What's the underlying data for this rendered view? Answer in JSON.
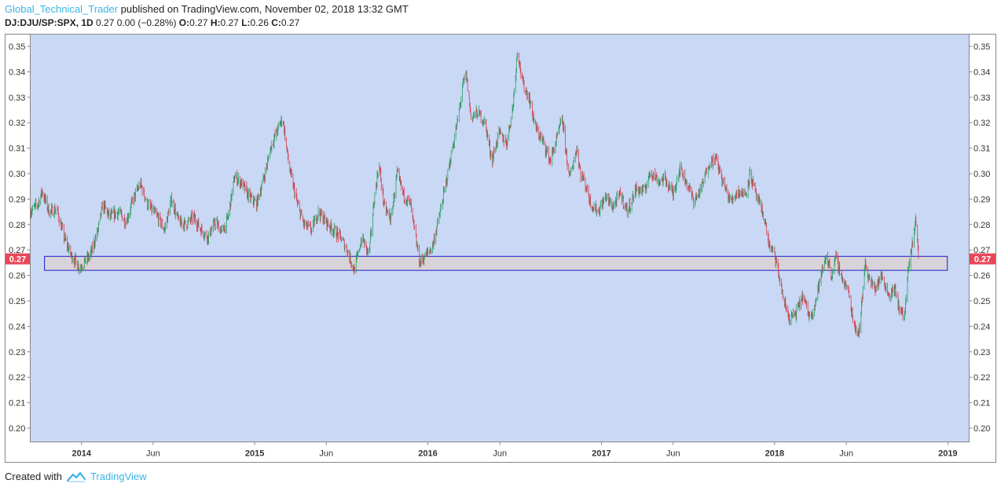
{
  "header": {
    "author": "Global_Technical_Trader",
    "published_text": " published on TradingView.com, November 02, 2018 13:32 GMT",
    "symbol": "DJ:DJU/SP:SPX, 1D",
    "quote": " 0.27 0.00 (−0.28%) ",
    "o_label": "O:",
    "o_value": "0.27 ",
    "h_label": "H:",
    "h_value": "0.27 ",
    "l_label": "L:",
    "l_value": "0.26 ",
    "c_label": "C:",
    "c_value": "0.27"
  },
  "footer": {
    "created_with": "Created with",
    "brand": "TradingView",
    "logo_icon": "tradingview-logo-icon"
  },
  "colors": {
    "plot_background": "#c9d8f5",
    "up": "#2e9e63",
    "down": "#d2404e",
    "zone_fill": "#d8d3d8",
    "zone_border": "#1d1dc8",
    "price_label_bg": "#e8475a"
  },
  "chart_data": {
    "type": "candlestick",
    "title": "",
    "xlabel": "",
    "ylabel": "",
    "ylim": [
      0.195,
      0.355
    ],
    "yticks": [
      "0.35",
      "0.34",
      "0.33",
      "0.32",
      "0.31",
      "0.30",
      "0.29",
      "0.28",
      "0.27",
      "0.26",
      "0.25",
      "0.24",
      "0.23",
      "0.22",
      "0.21",
      "0.20"
    ],
    "xticks": [
      {
        "label": "2014",
        "bold": true,
        "date": "2014-01-01"
      },
      {
        "label": "Jun",
        "bold": false,
        "date": "2014-06-01"
      },
      {
        "label": "2015",
        "bold": true,
        "date": "2015-01-01"
      },
      {
        "label": "Jun",
        "bold": false,
        "date": "2015-06-01"
      },
      {
        "label": "2016",
        "bold": true,
        "date": "2016-01-01"
      },
      {
        "label": "Jun",
        "bold": false,
        "date": "2016-06-01"
      },
      {
        "label": "2017",
        "bold": true,
        "date": "2017-01-01"
      },
      {
        "label": "Jun",
        "bold": false,
        "date": "2017-06-01"
      },
      {
        "label": "2018",
        "bold": true,
        "date": "2018-01-01"
      },
      {
        "label": "Jun",
        "bold": false,
        "date": "2018-06-01"
      },
      {
        "label": "2019",
        "bold": true,
        "date": "2019-01-01"
      }
    ],
    "xlim": [
      "2013-09-15",
      "2019-02-15"
    ],
    "last_price": "0.27",
    "last_price_value": 0.2665,
    "support_zone": {
      "low": 0.262,
      "high": 0.2675,
      "start": "2013-10-15",
      "end": "2018-12-31"
    },
    "series_path": [
      [
        "2013-09-15",
        0.285
      ],
      [
        "2013-10-01",
        0.288
      ],
      [
        "2013-10-10",
        0.293
      ],
      [
        "2013-10-25",
        0.285
      ],
      [
        "2013-11-10",
        0.286
      ],
      [
        "2013-11-25",
        0.275
      ],
      [
        "2013-12-10",
        0.268
      ],
      [
        "2013-12-28",
        0.263
      ],
      [
        "2014-01-20",
        0.268
      ],
      [
        "2014-02-05",
        0.278
      ],
      [
        "2014-02-15",
        0.288
      ],
      [
        "2014-03-01",
        0.283
      ],
      [
        "2014-03-20",
        0.285
      ],
      [
        "2014-04-05",
        0.281
      ],
      [
        "2014-04-20",
        0.29
      ],
      [
        "2014-05-05",
        0.296
      ],
      [
        "2014-05-20",
        0.288
      ],
      [
        "2014-06-10",
        0.283
      ],
      [
        "2014-06-25",
        0.278
      ],
      [
        "2014-07-10",
        0.29
      ],
      [
        "2014-07-25",
        0.281
      ],
      [
        "2014-08-10",
        0.28
      ],
      [
        "2014-08-25",
        0.283
      ],
      [
        "2014-09-10",
        0.278
      ],
      [
        "2014-09-25",
        0.275
      ],
      [
        "2014-10-10",
        0.281
      ],
      [
        "2014-10-25",
        0.277
      ],
      [
        "2014-11-05",
        0.282
      ],
      [
        "2014-11-20",
        0.299
      ],
      [
        "2014-12-05",
        0.296
      ],
      [
        "2014-12-20",
        0.291
      ],
      [
        "2015-01-05",
        0.288
      ],
      [
        "2015-01-20",
        0.298
      ],
      [
        "2015-02-05",
        0.311
      ],
      [
        "2015-02-20",
        0.318
      ],
      [
        "2015-03-01",
        0.322
      ],
      [
        "2015-03-15",
        0.302
      ],
      [
        "2015-04-01",
        0.288
      ],
      [
        "2015-04-15",
        0.28
      ],
      [
        "2015-05-01",
        0.278
      ],
      [
        "2015-05-15",
        0.285
      ],
      [
        "2015-06-01",
        0.281
      ],
      [
        "2015-06-15",
        0.278
      ],
      [
        "2015-07-01",
        0.275
      ],
      [
        "2015-07-15",
        0.27
      ],
      [
        "2015-07-30",
        0.262
      ],
      [
        "2015-08-15",
        0.275
      ],
      [
        "2015-08-30",
        0.268
      ],
      [
        "2015-09-10",
        0.29
      ],
      [
        "2015-09-20",
        0.304
      ],
      [
        "2015-10-01",
        0.287
      ],
      [
        "2015-10-15",
        0.282
      ],
      [
        "2015-10-28",
        0.3
      ],
      [
        "2015-11-10",
        0.292
      ],
      [
        "2015-11-25",
        0.288
      ],
      [
        "2015-12-05",
        0.276
      ],
      [
        "2015-12-15",
        0.265
      ],
      [
        "2015-12-28",
        0.268
      ],
      [
        "2016-01-10",
        0.271
      ],
      [
        "2016-01-25",
        0.283
      ],
      [
        "2016-02-10",
        0.298
      ],
      [
        "2016-02-25",
        0.313
      ],
      [
        "2016-03-05",
        0.322
      ],
      [
        "2016-03-15",
        0.335
      ],
      [
        "2016-03-22",
        0.339
      ],
      [
        "2016-04-01",
        0.322
      ],
      [
        "2016-04-15",
        0.324
      ],
      [
        "2016-05-01",
        0.32
      ],
      [
        "2016-05-15",
        0.305
      ],
      [
        "2016-05-30",
        0.316
      ],
      [
        "2016-06-15",
        0.312
      ],
      [
        "2016-06-28",
        0.326
      ],
      [
        "2016-07-08",
        0.349
      ],
      [
        "2016-07-18",
        0.336
      ],
      [
        "2016-08-01",
        0.33
      ],
      [
        "2016-08-15",
        0.318
      ],
      [
        "2016-09-01",
        0.312
      ],
      [
        "2016-09-15",
        0.305
      ],
      [
        "2016-10-01",
        0.315
      ],
      [
        "2016-10-10",
        0.322
      ],
      [
        "2016-10-25",
        0.298
      ],
      [
        "2016-11-10",
        0.31
      ],
      [
        "2016-11-18",
        0.3
      ],
      [
        "2016-11-28",
        0.296
      ],
      [
        "2016-12-10",
        0.288
      ],
      [
        "2016-12-25",
        0.285
      ],
      [
        "2017-01-10",
        0.291
      ],
      [
        "2017-01-25",
        0.287
      ],
      [
        "2017-02-10",
        0.292
      ],
      [
        "2017-02-25",
        0.285
      ],
      [
        "2017-03-15",
        0.294
      ],
      [
        "2017-04-01",
        0.293
      ],
      [
        "2017-04-15",
        0.301
      ],
      [
        "2017-05-01",
        0.297
      ],
      [
        "2017-05-15",
        0.298
      ],
      [
        "2017-06-01",
        0.292
      ],
      [
        "2017-06-15",
        0.302
      ],
      [
        "2017-07-01",
        0.296
      ],
      [
        "2017-07-15",
        0.289
      ],
      [
        "2017-08-01",
        0.295
      ],
      [
        "2017-08-15",
        0.304
      ],
      [
        "2017-08-30",
        0.306
      ],
      [
        "2017-09-15",
        0.296
      ],
      [
        "2017-09-30",
        0.289
      ],
      [
        "2017-10-15",
        0.293
      ],
      [
        "2017-11-01",
        0.292
      ],
      [
        "2017-11-10",
        0.3
      ],
      [
        "2017-11-25",
        0.29
      ],
      [
        "2017-12-10",
        0.283
      ],
      [
        "2017-12-20",
        0.272
      ],
      [
        "2018-01-01",
        0.268
      ],
      [
        "2018-01-10",
        0.26
      ],
      [
        "2018-01-20",
        0.25
      ],
      [
        "2018-02-01",
        0.243
      ],
      [
        "2018-02-15",
        0.245
      ],
      [
        "2018-03-01",
        0.252
      ],
      [
        "2018-03-15",
        0.244
      ],
      [
        "2018-03-25",
        0.247
      ],
      [
        "2018-04-05",
        0.257
      ],
      [
        "2018-04-20",
        0.268
      ],
      [
        "2018-05-01",
        0.26
      ],
      [
        "2018-05-10",
        0.267
      ],
      [
        "2018-05-25",
        0.258
      ],
      [
        "2018-06-05",
        0.254
      ],
      [
        "2018-06-15",
        0.243
      ],
      [
        "2018-06-25",
        0.237
      ],
      [
        "2018-07-01",
        0.242
      ],
      [
        "2018-07-10",
        0.265
      ],
      [
        "2018-07-20",
        0.258
      ],
      [
        "2018-08-01",
        0.255
      ],
      [
        "2018-08-15",
        0.26
      ],
      [
        "2018-08-30",
        0.252
      ],
      [
        "2018-09-10",
        0.255
      ],
      [
        "2018-09-20",
        0.248
      ],
      [
        "2018-10-01",
        0.243
      ],
      [
        "2018-10-10",
        0.262
      ],
      [
        "2018-10-20",
        0.275
      ],
      [
        "2018-10-25",
        0.282
      ],
      [
        "2018-11-01",
        0.266
      ]
    ]
  }
}
